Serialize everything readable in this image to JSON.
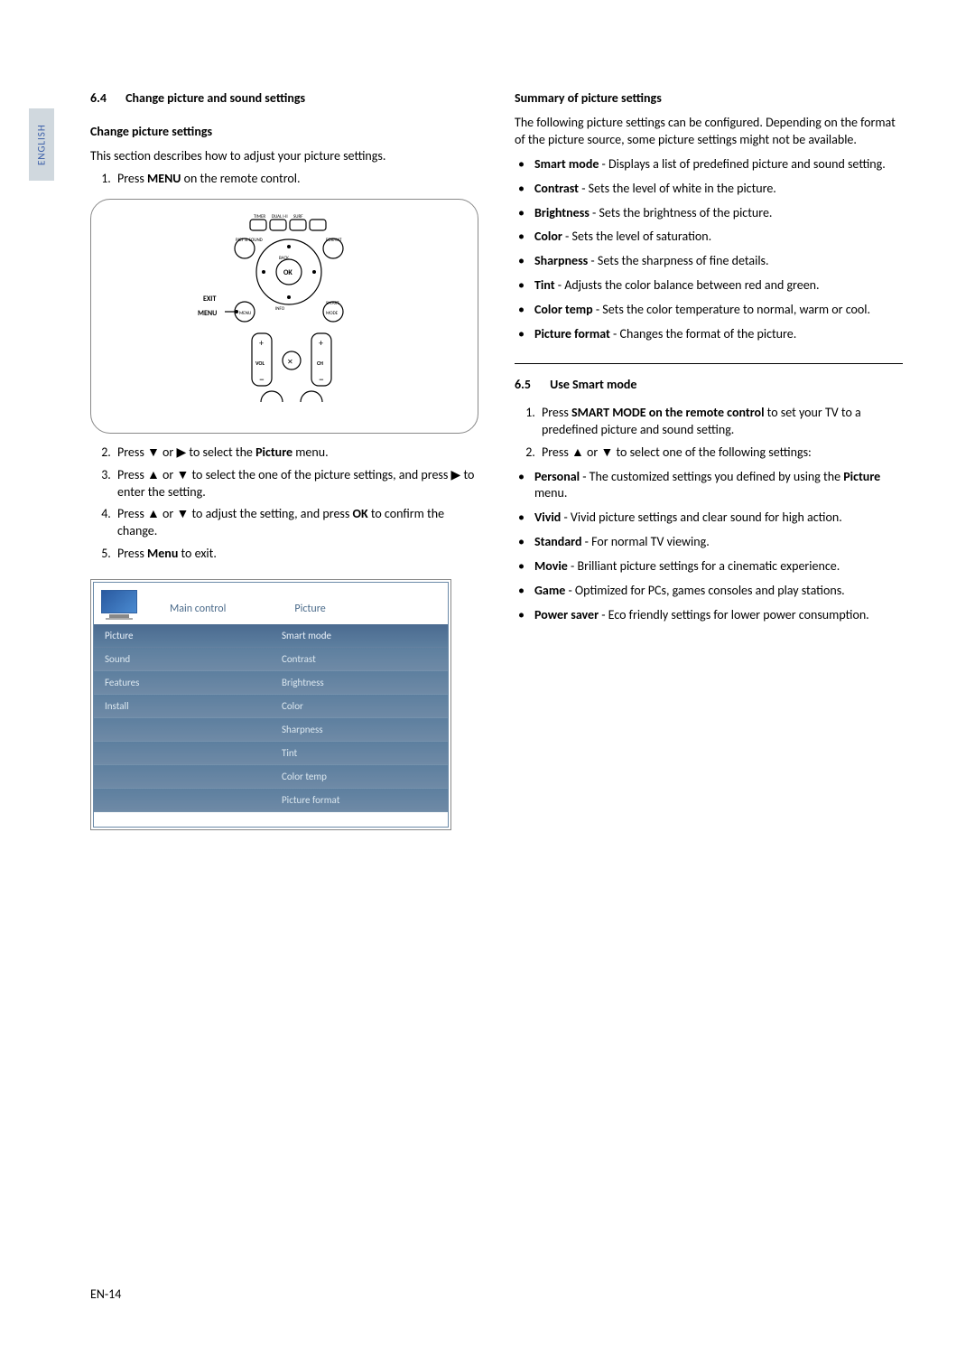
{
  "lang_tab": "ENGLISH",
  "page_number": "EN-14",
  "remote": {
    "labels": {
      "exit": "EXIT",
      "menu": "MENU",
      "ok": "OK",
      "back": "BACK",
      "picture_sound": "PICT & SOUND",
      "format": "FORMAT",
      "vol": "VOL",
      "ch": "CH",
      "quick": "",
      "smart_mode": "SMART MODE",
      "info": "INFO"
    }
  },
  "left": {
    "section_num": "6.4",
    "section_title": "Change picture and sound settings",
    "sub1": "Change picture settings",
    "intro": "This section describes how to adjust your picture settings.",
    "steps": [
      {
        "pre": "Press ",
        "b": "MENU",
        "post": " on the remote control."
      },
      {
        "html": "Press ▼ or ▶ to select the <b>Picture</b> menu."
      },
      {
        "html": "Press ▲ or ▼ to select the one of the picture settings, and press ▶ to enter the setting."
      },
      {
        "html": "Press ▲ or ▼ to adjust the setting, and press <b>OK</b> to confirm the change."
      },
      {
        "html": "Press <b>Menu</b> to exit."
      }
    ]
  },
  "menu": {
    "header_left": "Main control",
    "header_right": "Picture",
    "left_items": [
      "Picture",
      "Sound",
      "Features",
      "Install",
      "",
      "",
      "",
      ""
    ],
    "left_selected": 0,
    "right_items": [
      "Smart mode",
      "Contrast",
      "Brightness",
      "Color",
      "Sharpness",
      "Tint",
      "Color temp",
      "Picture format"
    ],
    "right_selected": 0,
    "colors": {
      "panel_bg": "#6f8aa6",
      "row_text": "#dce8f0",
      "header_text": "#4a6a8a"
    }
  },
  "right": {
    "sub1": "Summary of picture settings",
    "intro": "The following picture settings can be configured. Depending on the format of the picture source, some picture settings might not be available.",
    "bullets": [
      {
        "b": "Smart mode",
        "t": " - Displays a list of predefined picture and sound setting."
      },
      {
        "b": "Contrast",
        "t": " - Sets the level of white in the picture."
      },
      {
        "b": "Brightness",
        "t": " - Sets the brightness of the picture."
      },
      {
        "b": "Color",
        "t": " - Sets the level of saturation."
      },
      {
        "b": "Sharpness",
        "t": " - Sets the sharpness of fine details."
      },
      {
        "b": "Tint",
        "t": " - Adjusts the color balance between red and green."
      },
      {
        "b": "Color temp",
        "t": " - Sets the color temperature to normal, warm or cool."
      },
      {
        "b": "Picture format",
        "t": " - Changes the format of the picture."
      }
    ],
    "section2_num": "6.5",
    "section2_title": "Use Smart mode",
    "steps2": [
      {
        "html": "Press <b>SMART MODE on the remote control</b> to set your TV to a predefined picture and sound setting."
      },
      {
        "html": "Press ▲ or ▼ to select one of the following settings:"
      }
    ],
    "bullets2": [
      {
        "b": "Personal",
        "t": " - The customized settings you defined by using the ",
        "b2": "Picture",
        "t2": " menu."
      },
      {
        "b": "Vivid",
        "t": " - Vivid picture settings and clear sound for high action."
      },
      {
        "b": "Standard",
        "t": " - For normal TV viewing."
      },
      {
        "b": "Movie",
        "t": " - Brilliant picture settings for a cinematic experience."
      },
      {
        "b": "Game",
        "t": " - Optimized for PCs, games consoles and play stations."
      },
      {
        "b": "Power saver",
        "t": " - Eco friendly settings for lower power consumption."
      }
    ]
  }
}
